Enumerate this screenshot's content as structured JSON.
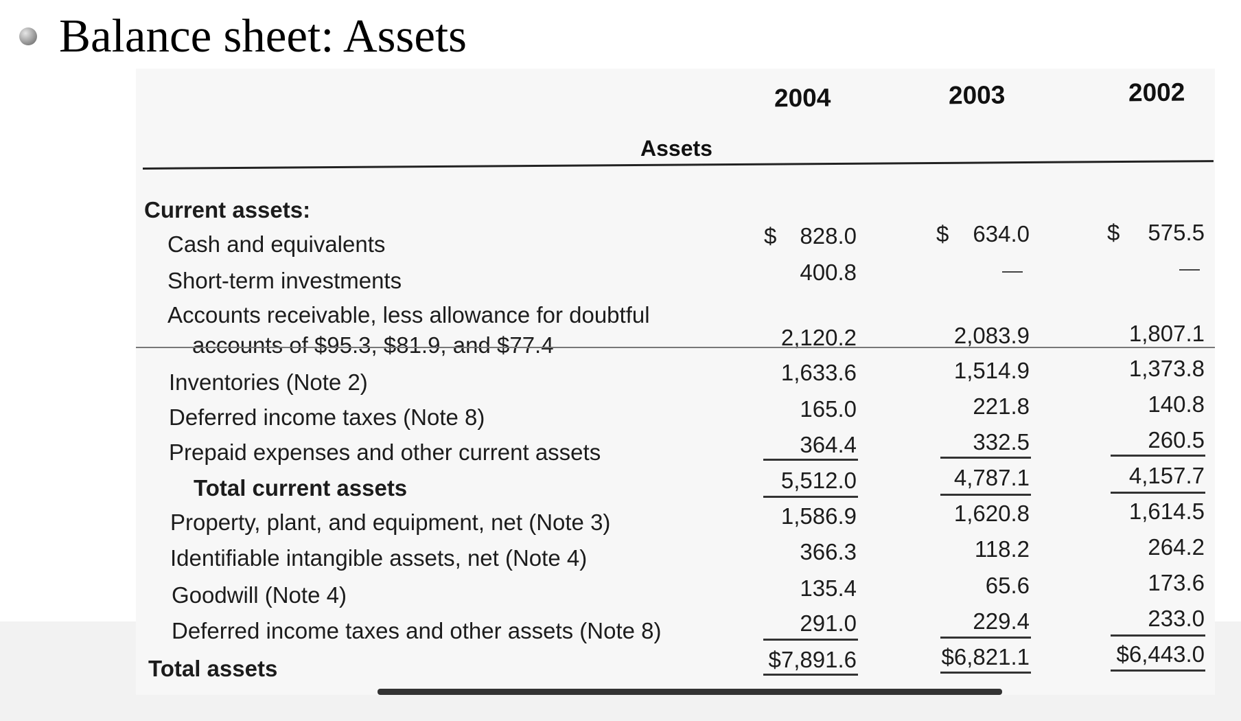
{
  "slide": {
    "title": "Balance sheet: Assets"
  },
  "table": {
    "years": [
      "2004",
      "2003",
      "2002"
    ],
    "assets_heading": "Assets",
    "current_assets_heading": "Current assets:",
    "rows": [
      {
        "label_line1": "Cash and equivalents",
        "values": [
          "828.0",
          "634.0",
          "575.5"
        ],
        "dollar": "$"
      },
      {
        "label_line1": "Short-term investments",
        "values": [
          "400.8",
          "—",
          "—"
        ]
      },
      {
        "label_line1": "Accounts receivable, less allowance for doubtful",
        "label_line2": "accounts of $95.3, $81.9, and $77.4",
        "values": [
          "2,120.2",
          "2,083.9",
          "1,807.1"
        ]
      },
      {
        "label_line1": "Inventories (Note 2)",
        "values": [
          "1,633.6",
          "1,514.9",
          "1,373.8"
        ]
      },
      {
        "label_line1": "Deferred income taxes (Note 8)",
        "values": [
          "165.0",
          "221.8",
          "140.8"
        ]
      },
      {
        "label_line1": "Prepaid expenses and other current assets",
        "values": [
          "364.4",
          "332.5",
          "260.5"
        ]
      },
      {
        "label_line1": "Total current assets",
        "values": [
          "5,512.0",
          "4,787.1",
          "4,157.7"
        ]
      },
      {
        "label_line1": "Property, plant, and equipment, net (Note 3)",
        "values": [
          "1,586.9",
          "1,620.8",
          "1,614.5"
        ]
      },
      {
        "label_line1": "Identifiable intangible assets, net (Note 4)",
        "values": [
          "366.3",
          "118.2",
          "264.2"
        ]
      },
      {
        "label_line1": "Goodwill (Note 4)",
        "values": [
          "135.4",
          "65.6",
          "173.6"
        ]
      },
      {
        "label_line1": "Deferred income taxes and other assets (Note 8)",
        "values": [
          "291.0",
          "229.4",
          "233.0"
        ]
      },
      {
        "label_line1": "Total assets",
        "values": [
          "$7,891.6",
          "$6,821.1",
          "$6,443.0"
        ]
      }
    ]
  }
}
